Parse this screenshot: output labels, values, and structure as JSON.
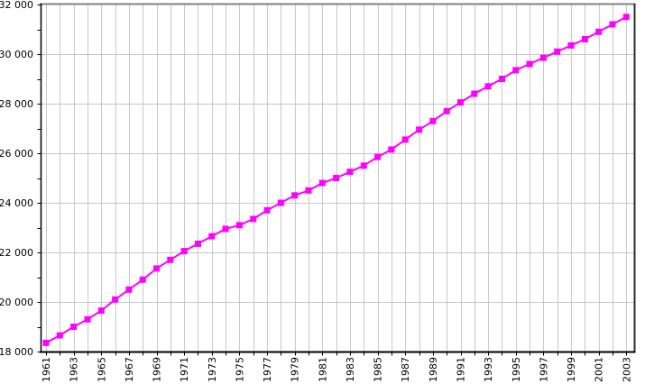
{
  "chart_data": {
    "type": "line",
    "x": [
      1961,
      1962,
      1963,
      1964,
      1965,
      1966,
      1967,
      1968,
      1969,
      1970,
      1971,
      1972,
      1973,
      1974,
      1975,
      1976,
      1977,
      1978,
      1979,
      1980,
      1981,
      1982,
      1983,
      1984,
      1985,
      1986,
      1987,
      1988,
      1989,
      1990,
      1991,
      1992,
      1993,
      1994,
      1995,
      1996,
      1997,
      1998,
      1999,
      2000,
      2001,
      2002,
      2003
    ],
    "values": [
      18350,
      18650,
      19000,
      19300,
      19650,
      20100,
      20500,
      20900,
      21350,
      21700,
      22050,
      22350,
      22650,
      22950,
      23100,
      23350,
      23700,
      24000,
      24300,
      24500,
      24800,
      25000,
      25250,
      25500,
      25850,
      26150,
      26550,
      26950,
      27300,
      27700,
      28050,
      28400,
      28700,
      29000,
      29350,
      29600,
      29850,
      30100,
      30350,
      30600,
      30900,
      31200,
      31500
    ],
    "ylim": [
      18000,
      32000
    ],
    "y_tick_values": [
      18000,
      20000,
      22000,
      24000,
      26000,
      28000,
      30000,
      32000
    ],
    "y_tick_labels": [
      "18 000",
      "20 000",
      "22 000",
      "24 000",
      "26 000",
      "28 000",
      "30 000",
      "32 000"
    ],
    "y_minor_tick_values": [
      19000,
      21000,
      23000,
      25000,
      27000,
      29000,
      31000
    ],
    "x_tick_years": [
      1961,
      1963,
      1965,
      1967,
      1969,
      1971,
      1973,
      1975,
      1977,
      1979,
      1981,
      1983,
      1985,
      1987,
      1989,
      1991,
      1993,
      1995,
      1997,
      1999,
      2001,
      2003
    ],
    "x_tick_labels": [
      "1961",
      "1963",
      "1965",
      "1967",
      "1969",
      "1971",
      "1973",
      "1975",
      "1977",
      "1979",
      "1981",
      "1983",
      "1985",
      "1987",
      "1989",
      "1991",
      "1993",
      "1995",
      "1997",
      "1999",
      "2001",
      "2003"
    ],
    "grid": "on",
    "legend": "none",
    "marker": "square",
    "colors": {
      "line": "#ff00ff",
      "marker": "#ff00ff",
      "grid": "#c8c8c8",
      "axis": "#000000",
      "frame_top": "#808080",
      "frame_right": "#2e2e2e",
      "background": "#ffffff",
      "tick_label": "#000000"
    }
  }
}
